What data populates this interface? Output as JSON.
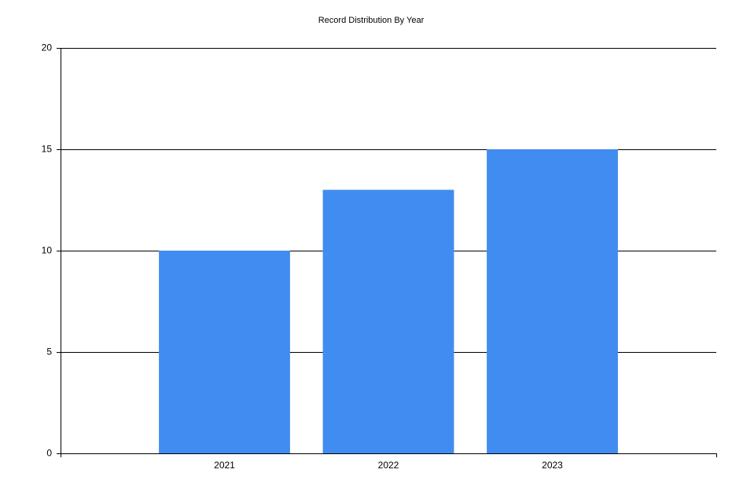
{
  "chart_data": {
    "type": "bar",
    "title": "Record Distribution By Year",
    "categories": [
      "2021",
      "2022",
      "2023"
    ],
    "values": [
      10,
      13,
      15
    ],
    "color": "#418cf0",
    "ylim": [
      0,
      20
    ],
    "yticks": [
      0,
      5,
      10,
      15,
      20
    ],
    "grid": true
  }
}
